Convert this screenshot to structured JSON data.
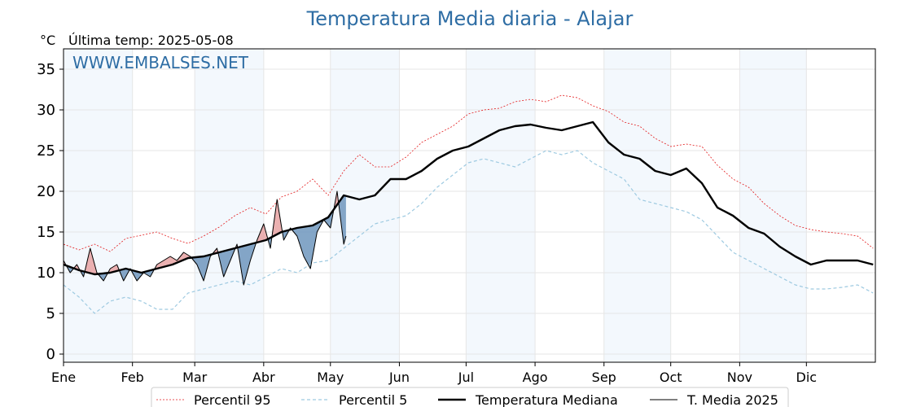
{
  "title": "Temperatura Media diaria - Alajar",
  "unit": "°C",
  "subtitle": "Última temp: 2025-05-08",
  "watermark": "WWW.EMBALSES.NET",
  "chart_data": {
    "type": "line",
    "ylim": [
      -1,
      37.5
    ],
    "yticks": [
      0,
      5,
      10,
      15,
      20,
      25,
      30,
      35
    ],
    "xlim": [
      1,
      366
    ],
    "xticks": [
      {
        "label": "Ene",
        "day": 1
      },
      {
        "label": "Feb",
        "day": 32
      },
      {
        "label": "Mar",
        "day": 60
      },
      {
        "label": "Abr",
        "day": 91
      },
      {
        "label": "May",
        "day": 121
      },
      {
        "label": "Jun",
        "day": 152
      },
      {
        "label": "Jul",
        "day": 182
      },
      {
        "label": "Ago",
        "day": 213
      },
      {
        "label": "Sep",
        "day": 244
      },
      {
        "label": "Oct",
        "day": 274
      },
      {
        "label": "Nov",
        "day": 305
      },
      {
        "label": "Dic",
        "day": 335
      }
    ],
    "shaded_months": [
      "Ene",
      "Mar",
      "May",
      "Jul",
      "Sep",
      "Nov"
    ],
    "grid": true,
    "legend_position": "bottom",
    "colors": {
      "p95": "#e31a1c",
      "p5": "#9ecae1",
      "median": "#000000",
      "current": "#000000",
      "above": "#e8a3a3",
      "below": "#6f97bd",
      "band": "#f3f8fd",
      "title": "#2e6da4"
    },
    "series": [
      {
        "key": "p95",
        "name": "Percentil 95",
        "x": [
          1,
          8,
          15,
          22,
          29,
          36,
          43,
          50,
          57,
          64,
          71,
          78,
          85,
          92,
          99,
          106,
          113,
          120,
          127,
          134,
          141,
          148,
          155,
          162,
          169,
          176,
          183,
          190,
          197,
          204,
          211,
          218,
          225,
          232,
          239,
          246,
          253,
          260,
          267,
          274,
          281,
          288,
          295,
          302,
          309,
          316,
          323,
          330,
          337,
          344,
          351,
          358,
          365
        ],
        "y": [
          13.5,
          12.8,
          13.5,
          12.6,
          14.2,
          14.6,
          15.0,
          14.2,
          13.6,
          14.5,
          15.6,
          17.0,
          18.0,
          17.2,
          19.3,
          20.0,
          21.5,
          19.5,
          22.5,
          24.5,
          23.0,
          23.0,
          24.2,
          26.0,
          27.0,
          28.0,
          29.5,
          30.0,
          30.2,
          31.0,
          31.3,
          31.0,
          31.8,
          31.5,
          30.5,
          29.8,
          28.5,
          28.0,
          26.5,
          25.5,
          25.8,
          25.5,
          23.2,
          21.5,
          20.5,
          18.5,
          17.0,
          15.8,
          15.3,
          15.0,
          14.8,
          14.5,
          13.0
        ]
      },
      {
        "key": "p5",
        "name": "Percentil 5",
        "x": [
          1,
          8,
          15,
          22,
          29,
          36,
          43,
          50,
          57,
          64,
          71,
          78,
          85,
          92,
          99,
          106,
          113,
          120,
          127,
          134,
          141,
          148,
          155,
          162,
          169,
          176,
          183,
          190,
          197,
          204,
          211,
          218,
          225,
          232,
          239,
          246,
          253,
          260,
          267,
          274,
          281,
          288,
          295,
          302,
          309,
          316,
          323,
          330,
          337,
          344,
          351,
          358,
          365
        ],
        "y": [
          8.5,
          7.0,
          5.0,
          6.5,
          7.0,
          6.5,
          5.5,
          5.5,
          7.5,
          8.0,
          8.5,
          9.0,
          8.5,
          9.5,
          10.5,
          10.0,
          11.2,
          11.5,
          13.0,
          14.5,
          16.0,
          16.5,
          17.0,
          18.5,
          20.5,
          22.0,
          23.5,
          24.0,
          23.5,
          23.0,
          24.0,
          25.0,
          24.5,
          25.0,
          23.5,
          22.5,
          21.5,
          19.0,
          18.5,
          18.0,
          17.5,
          16.5,
          14.5,
          12.5,
          11.5,
          10.5,
          9.5,
          8.5,
          8.0,
          8.0,
          8.2,
          8.5,
          7.5
        ]
      },
      {
        "key": "median",
        "name": "Temperatura Mediana",
        "x": [
          1,
          8,
          15,
          22,
          29,
          36,
          43,
          50,
          57,
          64,
          71,
          78,
          85,
          92,
          99,
          106,
          113,
          120,
          127,
          134,
          141,
          148,
          155,
          162,
          169,
          176,
          183,
          190,
          197,
          204,
          211,
          218,
          225,
          232,
          239,
          246,
          253,
          260,
          267,
          274,
          281,
          288,
          295,
          302,
          309,
          316,
          323,
          330,
          337,
          344,
          351,
          358,
          365
        ],
        "y": [
          11.0,
          10.3,
          9.8,
          10.0,
          10.5,
          10.0,
          10.5,
          11.0,
          11.8,
          12.0,
          12.5,
          13.0,
          13.5,
          14.0,
          15.0,
          15.5,
          15.8,
          16.8,
          19.5,
          19.0,
          19.5,
          21.5,
          21.5,
          22.5,
          24.0,
          25.0,
          25.5,
          26.5,
          27.5,
          28.0,
          28.2,
          27.8,
          27.5,
          28.0,
          28.5,
          26.0,
          24.5,
          24.0,
          22.5,
          22.0,
          22.8,
          21.0,
          18.0,
          17.0,
          15.5,
          14.8,
          13.2,
          12.0,
          11.0,
          11.5,
          11.5,
          11.5,
          11.0
        ]
      },
      {
        "key": "current",
        "name": "T. Media 2025",
        "x": [
          1,
          4,
          7,
          10,
          13,
          16,
          19,
          22,
          25,
          28,
          31,
          34,
          37,
          40,
          43,
          46,
          49,
          52,
          55,
          58,
          61,
          64,
          67,
          70,
          73,
          76,
          79,
          82,
          85,
          88,
          91,
          94,
          97,
          100,
          103,
          106,
          109,
          112,
          115,
          118,
          121,
          124,
          127,
          128
        ],
        "y": [
          11.5,
          10.0,
          11.0,
          9.5,
          13.0,
          10.0,
          9.0,
          10.5,
          11.0,
          9.0,
          10.5,
          9.0,
          10.0,
          9.5,
          11.0,
          11.5,
          12.0,
          11.5,
          12.5,
          12.0,
          11.0,
          9.0,
          12.0,
          13.0,
          9.5,
          11.5,
          13.5,
          8.5,
          11.5,
          14.0,
          16.0,
          13.0,
          19.0,
          14.0,
          15.5,
          14.5,
          12.0,
          10.5,
          15.0,
          16.5,
          15.5,
          20.0,
          13.5,
          14.5
        ]
      }
    ],
    "legend": [
      {
        "key": "p95",
        "label": "Percentil 95"
      },
      {
        "key": "p5",
        "label": "Percentil 5"
      },
      {
        "key": "median",
        "label": "Temperatura Mediana"
      },
      {
        "key": "current",
        "label": "T. Media 2025"
      }
    ]
  }
}
